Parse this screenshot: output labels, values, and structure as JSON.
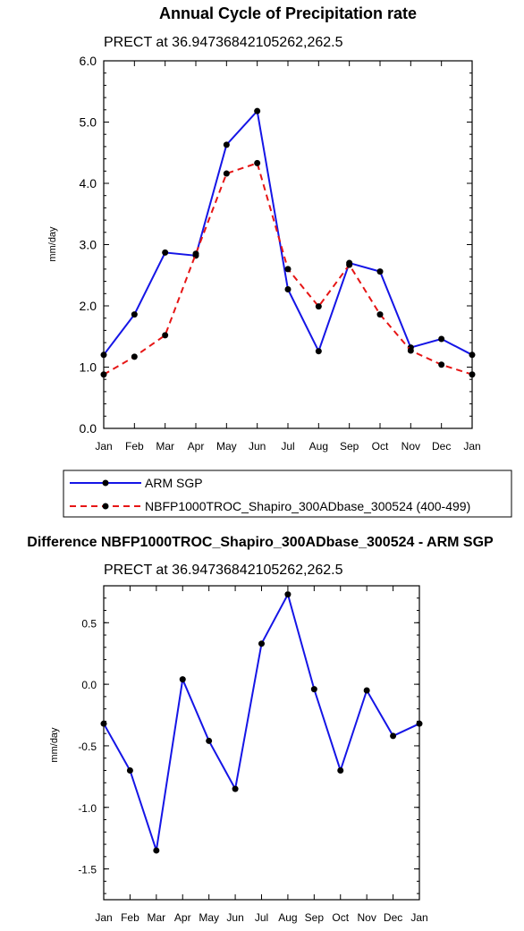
{
  "colors": {
    "arm": "#1515e6",
    "model": "#e61515",
    "marker": "#000000"
  },
  "chart_data": [
    {
      "type": "line",
      "title": "Annual Cycle of Precipitation rate",
      "subtitle": "PRECT at 36.94736842105262,262.5",
      "ylabel": "mm/day",
      "ylim": [
        0.0,
        6.0
      ],
      "y_ticks": [
        "0.0",
        "1.0",
        "2.0",
        "3.0",
        "4.0",
        "5.0",
        "6.0"
      ],
      "categories": [
        "Jan",
        "Feb",
        "Mar",
        "Apr",
        "May",
        "Jun",
        "Jul",
        "Aug",
        "Sep",
        "Oct",
        "Nov",
        "Dec",
        "Jan"
      ],
      "legend_position": "bottom",
      "series": [
        {
          "name": "ARM SGP",
          "style": "solid",
          "values": [
            1.2,
            1.86,
            2.87,
            2.82,
            4.63,
            5.18,
            2.27,
            1.26,
            2.7,
            2.56,
            1.32,
            1.46,
            1.2
          ]
        },
        {
          "name": "NBFP1000TROC_Shapiro_300ADbase_300524 (400-499)",
          "style": "dashed",
          "values": [
            0.88,
            1.17,
            1.52,
            2.85,
            4.16,
            4.33,
            2.6,
            1.99,
            2.67,
            1.86,
            1.27,
            1.04,
            0.88
          ]
        }
      ]
    },
    {
      "type": "line",
      "title": "Difference NBFP1000TROC_Shapiro_300ADbase_300524 - ARM SGP",
      "subtitle": "PRECT at 36.94736842105262,262.5",
      "ylabel": "mm/day",
      "ylim": [
        -1.75,
        0.8
      ],
      "y_ticks": [
        "-1.5",
        "-1.0",
        "-0.5",
        "0.0",
        "0.5"
      ],
      "categories": [
        "Jan",
        "Feb",
        "Mar",
        "Apr",
        "May",
        "Jun",
        "Jul",
        "Aug",
        "Sep",
        "Oct",
        "Nov",
        "Dec",
        "Jan"
      ],
      "series": [
        {
          "style": "solid",
          "values": [
            -0.32,
            -0.7,
            -1.35,
            0.04,
            -0.46,
            -0.85,
            0.33,
            0.73,
            -0.04,
            -0.7,
            -0.05,
            -0.42,
            -0.32
          ]
        }
      ]
    }
  ]
}
